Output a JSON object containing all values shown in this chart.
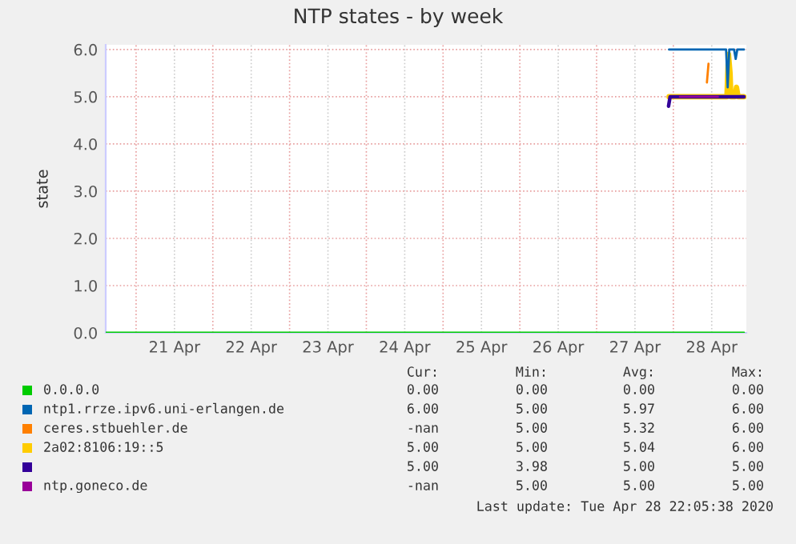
{
  "chart_data": {
    "type": "line",
    "title": "NTP states - by week",
    "ylabel": "state",
    "xlim": [
      "2020-04-20T14:30",
      "2020-04-28T22:50"
    ],
    "ylim": [
      0,
      6.1
    ],
    "yticks": [
      {
        "value": 0,
        "label": "0.0"
      },
      {
        "value": 1,
        "label": "1.0"
      },
      {
        "value": 2,
        "label": "2.0"
      },
      {
        "value": 3,
        "label": "3.0"
      },
      {
        "value": 4,
        "label": "4.0"
      },
      {
        "value": 5,
        "label": "5.0"
      },
      {
        "value": 6,
        "label": "6.0"
      }
    ],
    "xticks": [
      {
        "value": "2020-04-21T00:00",
        "label": null
      },
      {
        "value": "2020-04-21T12:00",
        "label": "21 Apr"
      },
      {
        "value": "2020-04-22T00:00",
        "label": null
      },
      {
        "value": "2020-04-22T12:00",
        "label": "22 Apr"
      },
      {
        "value": "2020-04-23T00:00",
        "label": null
      },
      {
        "value": "2020-04-23T12:00",
        "label": "23 Apr"
      },
      {
        "value": "2020-04-24T00:00",
        "label": null
      },
      {
        "value": "2020-04-24T12:00",
        "label": "24 Apr"
      },
      {
        "value": "2020-04-25T00:00",
        "label": null
      },
      {
        "value": "2020-04-25T12:00",
        "label": "25 Apr"
      },
      {
        "value": "2020-04-26T00:00",
        "label": null
      },
      {
        "value": "2020-04-26T12:00",
        "label": "26 Apr"
      },
      {
        "value": "2020-04-27T00:00",
        "label": null
      },
      {
        "value": "2020-04-27T12:00",
        "label": "27 Apr"
      },
      {
        "value": "2020-04-28T00:00",
        "label": null
      },
      {
        "value": "2020-04-28T12:00",
        "label": "28 Apr"
      }
    ],
    "grid": true,
    "legend": "bottom",
    "marker": "none",
    "line_style": "solid",
    "series": [
      {
        "name": "0.0.0.0",
        "color": "#00cc00",
        "x": [
          "2020-04-20T14:30",
          "2020-04-28T22:05"
        ],
        "values": [
          0,
          0
        ]
      },
      {
        "name": "ntp1.rrze.ipv6.uni-erlangen.de",
        "color": "#0066b3",
        "x": [
          "2020-04-27T22:40",
          "2020-04-28T16:30",
          "2020-04-28T17:00",
          "2020-04-28T17:30",
          "2020-04-28T18:00",
          "2020-04-28T19:00",
          "2020-04-28T19:30",
          "2020-04-28T20:00",
          "2020-04-28T22:05"
        ],
        "values": [
          6,
          6,
          5.2,
          6,
          6,
          6,
          5.8,
          6,
          6
        ]
      },
      {
        "name": "ceres.stbuehler.de",
        "color": "#ff8000",
        "x": [
          "2020-04-28T10:30",
          "2020-04-28T11:00"
        ],
        "values": [
          5.3,
          5.7
        ]
      },
      {
        "name": "2a02:8106:19::5",
        "color": "#ffcc00",
        "x": [
          "2020-04-27T22:40",
          "2020-04-28T16:45",
          "2020-04-28T17:15",
          "2020-04-28T17:45",
          "2020-04-28T18:00",
          "2020-04-28T19:15",
          "2020-04-28T19:45",
          "2020-04-28T20:15",
          "2020-04-28T22:05"
        ],
        "values": [
          5,
          5,
          5.9,
          5.5,
          5,
          5,
          5.2,
          5,
          5
        ]
      },
      {
        "name": null,
        "color": "#330099",
        "x": [
          "2020-04-27T22:30",
          "2020-04-27T23:00",
          "2020-04-28T22:05"
        ],
        "values": [
          4.8,
          5,
          5
        ]
      },
      {
        "name": "ntp.goneco.de",
        "color": "#990099",
        "x": [
          "2020-04-28T02:00",
          "2020-04-28T14:00"
        ],
        "values": [
          5,
          5
        ]
      }
    ],
    "annotations": [
      "Cur:",
      "Min:",
      "Avg:",
      "Max:",
      "0.00",
      "0.00",
      "0.00",
      "0.00",
      "6.00",
      "5.00",
      "5.97",
      "6.00",
      "-nan",
      "5.00",
      "5.32",
      "6.00",
      "5.00",
      "5.00",
      "5.04",
      "6.00",
      "5.00",
      "3.98",
      "5.00",
      "5.00",
      "-nan",
      "5.00",
      "5.00",
      "5.00",
      "Last update: Tue Apr 28 22:05:38 2020"
    ]
  }
}
